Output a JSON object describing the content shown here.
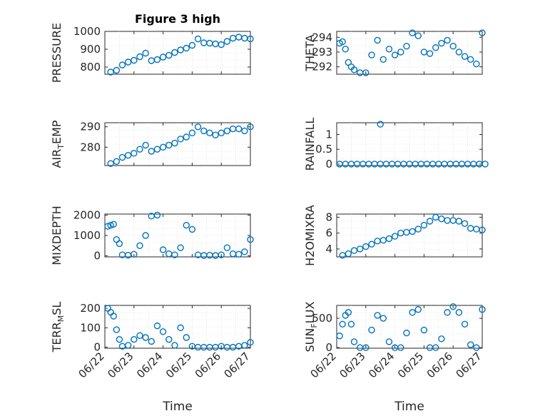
{
  "colors": {
    "marker": "#0072bd",
    "axis": "#262626",
    "grid": "#d0d0d0"
  },
  "chart_data": [
    {
      "type": "scatter",
      "id": "pressure",
      "title": "Figure 3 high",
      "ylabel": "PRESSURE",
      "ylim": [
        760,
        1000
      ],
      "yticks": [
        800,
        900,
        1000
      ],
      "x": [
        0.2,
        0.4,
        0.6,
        0.8,
        1.0,
        1.2,
        1.4,
        1.6,
        1.8,
        2.0,
        2.2,
        2.4,
        2.6,
        2.8,
        3.0,
        3.2,
        3.4,
        3.6,
        3.8,
        4.0,
        4.2,
        4.4,
        4.6,
        4.8,
        5.0
      ],
      "y": [
        772,
        782,
        812,
        828,
        838,
        858,
        878,
        836,
        842,
        856,
        866,
        882,
        896,
        906,
        922,
        958,
        936,
        934,
        930,
        926,
        944,
        962,
        968,
        962,
        958
      ]
    },
    {
      "type": "scatter",
      "id": "theta",
      "ylabel": "THETA",
      "ylim": [
        291.5,
        294.4
      ],
      "yticks": [
        292,
        293,
        294
      ],
      "x": [
        0.1,
        0.2,
        0.3,
        0.4,
        0.5,
        0.6,
        0.8,
        1.0,
        1.2,
        1.4,
        1.6,
        1.8,
        2.0,
        2.2,
        2.4,
        2.6,
        2.8,
        3.0,
        3.2,
        3.4,
        3.6,
        3.8,
        4.0,
        4.2,
        4.4,
        4.6,
        4.8,
        5.0
      ],
      "y": [
        293.6,
        293.7,
        293.2,
        292.3,
        292.0,
        291.8,
        291.6,
        291.6,
        292.8,
        293.8,
        292.5,
        293.2,
        292.8,
        293.0,
        293.4,
        294.3,
        294.1,
        293.0,
        292.9,
        293.3,
        293.6,
        293.8,
        293.4,
        293.0,
        292.7,
        292.5,
        292.2,
        294.3
      ]
    },
    {
      "type": "scatter",
      "id": "air_temp",
      "ylabel": "AIR_TEMP",
      "ylim": [
        271,
        292
      ],
      "yticks": [
        280,
        290
      ],
      "x": [
        0.2,
        0.4,
        0.6,
        0.8,
        1.0,
        1.2,
        1.4,
        1.6,
        1.8,
        2.0,
        2.2,
        2.4,
        2.6,
        2.8,
        3.0,
        3.2,
        3.4,
        3.6,
        3.8,
        4.0,
        4.2,
        4.4,
        4.6,
        4.8,
        5.0
      ],
      "y": [
        272,
        273,
        275,
        276,
        277,
        279,
        281,
        278,
        279,
        280,
        281,
        282,
        284,
        285,
        287,
        290,
        288,
        287,
        286,
        287,
        288,
        289,
        289,
        288,
        290
      ]
    },
    {
      "type": "scatter",
      "id": "rainfall",
      "ylabel": "RAINFALL",
      "ylim": [
        -0.05,
        1.4
      ],
      "yticks": [
        0,
        0.5,
        1
      ],
      "x": [
        0.1,
        0.3,
        0.5,
        0.7,
        0.9,
        1.1,
        1.3,
        1.5,
        1.7,
        1.9,
        2.1,
        2.3,
        2.5,
        2.7,
        2.9,
        3.1,
        3.3,
        3.5,
        3.7,
        3.9,
        4.1,
        4.3,
        4.5,
        4.7,
        4.9,
        5.1,
        1.5
      ],
      "y": [
        0,
        0,
        0,
        0,
        0,
        0,
        0,
        0,
        0,
        0,
        0,
        0,
        0,
        0,
        0,
        0,
        0,
        0,
        0,
        0,
        0,
        0,
        0,
        0,
        0,
        0,
        1.35
      ]
    },
    {
      "type": "scatter",
      "id": "mixdepth",
      "ylabel": "MIXDEPTH",
      "ylim": [
        -50,
        2050
      ],
      "yticks": [
        0,
        1000,
        2000
      ],
      "x": [
        0.1,
        0.2,
        0.3,
        0.4,
        0.5,
        0.6,
        0.8,
        1.0,
        1.2,
        1.4,
        1.6,
        1.8,
        2.0,
        2.2,
        2.4,
        2.6,
        2.8,
        3.0,
        3.2,
        3.4,
        3.6,
        3.8,
        4.0,
        4.2,
        4.4,
        4.6,
        4.8,
        5.0
      ],
      "y": [
        1450,
        1500,
        1550,
        800,
        600,
        50,
        30,
        80,
        500,
        1000,
        1950,
        2000,
        300,
        100,
        50,
        400,
        1500,
        1300,
        50,
        20,
        30,
        20,
        50,
        400,
        100,
        80,
        200,
        800
      ]
    },
    {
      "type": "scatter",
      "id": "h2omixra",
      "ylabel": "H2OMIXRA",
      "ylim": [
        3,
        8.4
      ],
      "yticks": [
        4,
        6,
        8
      ],
      "x": [
        0.2,
        0.4,
        0.6,
        0.8,
        1.0,
        1.2,
        1.4,
        1.6,
        1.8,
        2.0,
        2.2,
        2.4,
        2.6,
        2.8,
        3.0,
        3.2,
        3.4,
        3.6,
        3.8,
        4.0,
        4.2,
        4.4,
        4.6,
        4.8,
        5.0
      ],
      "y": [
        3.2,
        3.4,
        3.8,
        4.0,
        4.3,
        4.6,
        5.0,
        5.1,
        5.3,
        5.6,
        6.0,
        6.1,
        6.2,
        6.5,
        7.0,
        7.5,
        8.0,
        7.8,
        7.6,
        7.6,
        7.5,
        7.2,
        6.6,
        6.5,
        6.4
      ]
    },
    {
      "type": "scatter",
      "id": "terr_msl",
      "ylabel": "TERR_MSL",
      "ylim": [
        -5,
        215
      ],
      "yticks": [
        0,
        100,
        200
      ],
      "x": [
        0.1,
        0.2,
        0.3,
        0.4,
        0.5,
        0.6,
        0.8,
        1.0,
        1.2,
        1.4,
        1.6,
        1.8,
        2.0,
        2.2,
        2.4,
        2.6,
        2.8,
        3.0,
        3.2,
        3.4,
        3.6,
        3.8,
        4.0,
        4.2,
        4.4,
        4.6,
        4.8,
        5.0
      ],
      "y": [
        200,
        180,
        160,
        90,
        40,
        5,
        10,
        40,
        60,
        50,
        30,
        110,
        80,
        40,
        10,
        100,
        50,
        5,
        0,
        0,
        0,
        0,
        5,
        0,
        0,
        5,
        10,
        25
      ]
    },
    {
      "type": "scatter",
      "id": "sun_flux",
      "ylabel": "SUN_FLUX",
      "ylim": [
        -10,
        720
      ],
      "yticks": [
        0,
        500
      ],
      "x": [
        0.1,
        0.2,
        0.3,
        0.4,
        0.5,
        0.6,
        0.8,
        1.0,
        1.2,
        1.4,
        1.6,
        1.8,
        2.0,
        2.2,
        2.4,
        2.6,
        2.8,
        3.0,
        3.2,
        3.4,
        3.6,
        3.8,
        4.0,
        4.2,
        4.4,
        4.6,
        4.8,
        5.0
      ],
      "y": [
        200,
        400,
        550,
        600,
        400,
        100,
        0,
        0,
        300,
        550,
        500,
        100,
        0,
        0,
        250,
        600,
        650,
        300,
        0,
        0,
        150,
        600,
        700,
        600,
        400,
        50,
        0,
        650
      ]
    }
  ],
  "xaxis": {
    "xlim": [
      0,
      5
    ],
    "tick_labels": [
      "06/22",
      "06/23",
      "06/24",
      "06/25",
      "06/26",
      "06/27"
    ],
    "xlabel": "Time"
  }
}
